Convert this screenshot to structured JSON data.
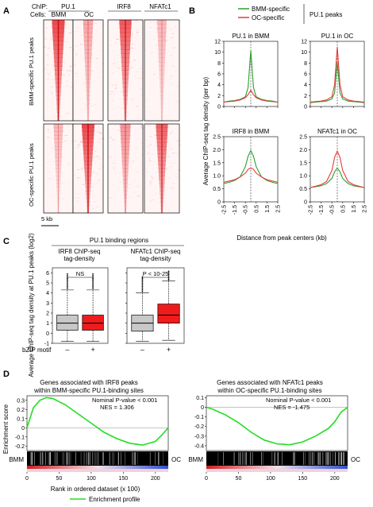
{
  "panelA": {
    "letter": "A",
    "chip_label": "ChIP:",
    "cells_label": "Cells:",
    "chip_names": [
      "PU.1",
      "IRF8",
      "NFATc1"
    ],
    "cell_names": [
      "BMM",
      "OC"
    ],
    "row_labels": [
      "BMM-specific PU.1 peaks",
      "OC-specific PU.1 peaks"
    ],
    "scale_bar": "5 kb"
  },
  "panelB": {
    "letter": "B",
    "legend": [
      {
        "label": "BMM-specific",
        "color": "#2ca02c"
      },
      {
        "label": "OC-specific",
        "color": "#e8383d"
      }
    ],
    "legend_title": "PU.1 peaks",
    "ylabel": "Average ChIP-seq tag density (per bp)",
    "xlabel": "Distance from peak centers (kb)",
    "x_ticks": [
      "-2.5",
      "-1.5",
      "-0.5",
      "0.5",
      "1.5",
      "2.5"
    ],
    "top_y_ticks": [
      "0",
      "2",
      "4",
      "6",
      "8",
      "10",
      "12"
    ],
    "bottom_y_ticks": [
      "0",
      "0.5",
      "1.0",
      "1.5",
      "2.0",
      "2.5"
    ]
  },
  "panelC": {
    "letter": "C",
    "header": "PU.1 binding regions",
    "subtitles": [
      "IRF8 ChIP-seq tag-density",
      "NFATc1 ChIP-seq tag-density"
    ],
    "ylabel": "Average ChIP-seq tag density at PU.1 peaks (log2)",
    "y_ticks": [
      "-1",
      "0",
      "1",
      "2",
      "3",
      "4",
      "5",
      "6"
    ],
    "signif": [
      "NS",
      "P < 10-25"
    ],
    "xcat_label": "bZIP motif",
    "xcats": [
      "–",
      "+"
    ]
  },
  "panelD": {
    "letter": "D",
    "titles": [
      [
        "Genes associated with IRF8 peaks",
        "within BMM-specific PU.1-binding sites"
      ],
      [
        "Genes associated with NFATc1 peaks",
        "within OC-specific PU.1-binding sites"
      ]
    ],
    "stats": [
      [
        "Nominal P-value  < 0.001",
        "NES = 1.306"
      ],
      [
        "Nominal P-value  < 0.001",
        "NES = -1.475"
      ]
    ],
    "ylabel": "Enrichment score",
    "left_y_ticks": [
      "-0.2",
      "-0.1",
      "0",
      "0.1",
      "0.2",
      "0.3"
    ],
    "right_y_ticks": [
      "-0.4",
      "-0.3",
      "-0.2",
      "-0.1",
      "0",
      "0.1"
    ],
    "x_ticks": [
      "0",
      "50",
      "100",
      "150",
      "200"
    ],
    "end_labels": [
      "BMM",
      "OC"
    ],
    "xlabel": "Rank in ordered dataset (x 100)",
    "legend": "Enrichment profile",
    "curve_color": "#22dd22"
  },
  "chart_data": [
    {
      "type": "line",
      "title": "PU.1 in BMM",
      "xlabel": "Distance from peak centers (kb)",
      "ylabel": "Average ChIP-seq tag density (per bp)",
      "xlim": [
        -2.5,
        2.5
      ],
      "ylim": [
        0,
        12
      ],
      "x": [
        -2.5,
        -2.0,
        -1.5,
        -1.0,
        -0.5,
        -0.25,
        0,
        0.25,
        0.5,
        1.0,
        1.5,
        2.0,
        2.5
      ],
      "series": [
        {
          "name": "BMM-specific",
          "values": [
            0.8,
            1.0,
            1.1,
            1.3,
            1.8,
            3.5,
            10.3,
            3.5,
            1.8,
            1.3,
            1.1,
            1.0,
            0.8
          ]
        },
        {
          "name": "OC-specific",
          "values": [
            0.8,
            0.9,
            1.0,
            1.2,
            1.6,
            2.2,
            3.0,
            2.2,
            1.6,
            1.2,
            1.0,
            0.9,
            0.8
          ]
        }
      ]
    },
    {
      "type": "line",
      "title": "PU.1 in OC",
      "xlim": [
        -2.5,
        2.5
      ],
      "ylim": [
        0,
        12
      ],
      "x": [
        -2.5,
        -2.0,
        -1.5,
        -1.0,
        -0.5,
        -0.25,
        0,
        0.25,
        0.5,
        1.0,
        1.5,
        2.0,
        2.5
      ],
      "series": [
        {
          "name": "BMM-specific",
          "values": [
            0.7,
            0.8,
            0.9,
            1.0,
            1.4,
            2.5,
            8.2,
            2.5,
            1.4,
            1.0,
            0.9,
            0.8,
            0.7
          ]
        },
        {
          "name": "OC-specific",
          "values": [
            0.8,
            0.9,
            1.0,
            1.2,
            1.8,
            4.0,
            11.0,
            4.0,
            1.8,
            1.2,
            1.0,
            0.9,
            0.8
          ]
        }
      ]
    },
    {
      "type": "line",
      "title": "IRF8 in BMM",
      "xlim": [
        -2.5,
        2.5
      ],
      "ylim": [
        0,
        2.5
      ],
      "x": [
        -2.5,
        -2.0,
        -1.5,
        -1.0,
        -0.5,
        -0.25,
        0,
        0.25,
        0.5,
        1.0,
        1.5,
        2.0,
        2.5
      ],
      "series": [
        {
          "name": "BMM-specific",
          "values": [
            0.7,
            0.75,
            0.82,
            0.95,
            1.35,
            1.75,
            1.97,
            1.75,
            1.35,
            0.95,
            0.82,
            0.75,
            0.7
          ]
        },
        {
          "name": "OC-specific",
          "values": [
            0.75,
            0.8,
            0.85,
            0.95,
            1.1,
            1.25,
            1.3,
            1.25,
            1.1,
            0.95,
            0.85,
            0.8,
            0.75
          ]
        }
      ]
    },
    {
      "type": "line",
      "title": "NFATc1 in OC",
      "xlim": [
        -2.5,
        2.5
      ],
      "ylim": [
        0,
        2.5
      ],
      "x": [
        -2.5,
        -2.0,
        -1.5,
        -1.0,
        -0.5,
        -0.25,
        0,
        0.25,
        0.5,
        1.0,
        1.5,
        2.0,
        2.5
      ],
      "series": [
        {
          "name": "BMM-specific",
          "values": [
            0.55,
            0.58,
            0.62,
            0.7,
            0.9,
            1.15,
            1.3,
            1.15,
            0.9,
            0.7,
            0.62,
            0.58,
            0.55
          ]
        },
        {
          "name": "OC-specific",
          "values": [
            0.55,
            0.6,
            0.66,
            0.78,
            1.2,
            1.7,
            1.95,
            1.7,
            1.2,
            0.78,
            0.66,
            0.6,
            0.55
          ]
        }
      ]
    },
    {
      "type": "box",
      "title": "IRF8 ChIP-seq tag-density",
      "categories": [
        "–",
        "+"
      ],
      "ylim": [
        -1,
        6.5
      ],
      "boxes": [
        {
          "q1": 0.3,
          "median": 1.0,
          "q3": 1.8,
          "whisker_low": -0.8,
          "whisker_high": 4.3,
          "color": "#c8c8c8"
        },
        {
          "q1": 0.3,
          "median": 1.0,
          "q3": 1.8,
          "whisker_low": -0.8,
          "whisker_high": 4.3,
          "color": "#ee1c1c"
        }
      ]
    },
    {
      "type": "box",
      "title": "NFATc1 ChIP-seq tag-density",
      "categories": [
        "–",
        "+"
      ],
      "ylim": [
        -1,
        6.5
      ],
      "boxes": [
        {
          "q1": 0.2,
          "median": 1.0,
          "q3": 1.8,
          "whisker_low": -0.8,
          "whisker_high": 4.0,
          "color": "#c8c8c8"
        },
        {
          "q1": 1.0,
          "median": 1.8,
          "q3": 2.9,
          "whisker_low": -0.7,
          "whisker_high": 5.2,
          "color": "#ee1c1c"
        }
      ]
    },
    {
      "type": "line",
      "title": "Genes associated with IRF8 peaks within BMM-specific PU.1-binding sites",
      "xlabel": "Rank in ordered dataset (x 100)",
      "ylabel": "Enrichment score",
      "xlim": [
        0,
        220
      ],
      "ylim": [
        -0.25,
        0.35
      ],
      "x": [
        0,
        10,
        20,
        30,
        40,
        60,
        80,
        100,
        120,
        140,
        160,
        180,
        200,
        210,
        220
      ],
      "series": [
        {
          "name": "Enrichment profile",
          "values": [
            0,
            0.22,
            0.3,
            0.33,
            0.32,
            0.25,
            0.15,
            0.05,
            -0.05,
            -0.12,
            -0.17,
            -0.19,
            -0.15,
            -0.08,
            0
          ]
        }
      ]
    },
    {
      "type": "line",
      "title": "Genes associated with NFATc1 peaks within OC-specific PU.1-binding sites",
      "xlabel": "Rank in ordered dataset (x 100)",
      "ylabel": "Enrichment score",
      "xlim": [
        0,
        220
      ],
      "ylim": [
        -0.45,
        0.12
      ],
      "x": [
        0,
        10,
        20,
        30,
        50,
        70,
        90,
        110,
        130,
        150,
        170,
        190,
        200,
        210,
        220
      ],
      "series": [
        {
          "name": "Enrichment profile",
          "values": [
            0,
            -0.02,
            -0.05,
            -0.08,
            -0.16,
            -0.26,
            -0.34,
            -0.38,
            -0.39,
            -0.36,
            -0.3,
            -0.22,
            -0.15,
            -0.05,
            0
          ]
        }
      ]
    }
  ]
}
